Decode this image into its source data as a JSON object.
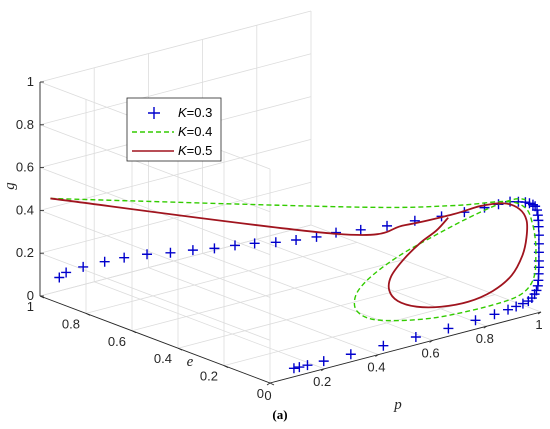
{
  "caption": "(a)",
  "chart_data": {
    "type": "line3d",
    "title": "",
    "xlabel": "p",
    "ylabel": "e",
    "zlabel": "g",
    "xlim": [
      0,
      1
    ],
    "ylim": [
      0,
      1
    ],
    "zlim": [
      0,
      1
    ],
    "x_ticks": [
      "0",
      "0.2",
      "0.4",
      "0.6",
      "0.8",
      "1"
    ],
    "y_ticks": [
      "0",
      "0.2",
      "0.4",
      "0.6",
      "0.8",
      "1"
    ],
    "z_ticks": [
      "0",
      "0.2",
      "0.4",
      "0.6",
      "0.8",
      "1"
    ],
    "grid": true,
    "legend_position": "upper-left",
    "series": [
      {
        "name": "K=0.3",
        "legend_italic": "K",
        "legend_rest": "=0.3",
        "style": "plus-markers",
        "color": "#0000cc",
        "points": [
          [
            0.05,
            0.975,
            0.08
          ],
          [
            0.02,
            0.91,
            0.14
          ],
          [
            0.015,
            0.83,
            0.2
          ],
          [
            0.018,
            0.74,
            0.26
          ],
          [
            0.022,
            0.66,
            0.31
          ],
          [
            0.03,
            0.57,
            0.36
          ],
          [
            0.04,
            0.48,
            0.4
          ],
          [
            0.055,
            0.4,
            0.44
          ],
          [
            0.075,
            0.33,
            0.47
          ],
          [
            0.1,
            0.27,
            0.5
          ],
          [
            0.13,
            0.22,
            0.52
          ],
          [
            0.17,
            0.175,
            0.53
          ],
          [
            0.215,
            0.14,
            0.54
          ],
          [
            0.265,
            0.11,
            0.55
          ],
          [
            0.32,
            0.09,
            0.56
          ],
          [
            0.39,
            0.065,
            0.56
          ],
          [
            0.47,
            0.045,
            0.56
          ],
          [
            0.56,
            0.03,
            0.56
          ],
          [
            0.65,
            0.02,
            0.555
          ],
          [
            0.73,
            0.015,
            0.55
          ],
          [
            0.8,
            0.01,
            0.55
          ],
          [
            0.85,
            0.008,
            0.55
          ],
          [
            0.89,
            0.005,
            0.55
          ],
          [
            0.92,
            0.004,
            0.54
          ],
          [
            0.945,
            0.003,
            0.53
          ],
          [
            0.96,
            0.003,
            0.52
          ],
          [
            0.972,
            0.002,
            0.51
          ],
          [
            0.98,
            0.002,
            0.5
          ],
          [
            0.987,
            0.002,
            0.48
          ],
          [
            0.99,
            0.002,
            0.455
          ],
          [
            0.992,
            0.002,
            0.43
          ],
          [
            0.993,
            0.002,
            0.4
          ],
          [
            0.994,
            0.002,
            0.36
          ],
          [
            0.994,
            0.002,
            0.32
          ],
          [
            0.994,
            0.002,
            0.28
          ],
          [
            0.994,
            0.002,
            0.24
          ],
          [
            0.994,
            0.002,
            0.21
          ],
          [
            0.993,
            0.002,
            0.18
          ],
          [
            0.992,
            0.002,
            0.15
          ],
          [
            0.99,
            0.002,
            0.125
          ],
          [
            0.985,
            0.002,
            0.105
          ],
          [
            0.978,
            0.002,
            0.09
          ],
          [
            0.968,
            0.002,
            0.075
          ],
          [
            0.955,
            0.002,
            0.065
          ],
          [
            0.935,
            0.002,
            0.06
          ],
          [
            0.91,
            0.002,
            0.055
          ],
          [
            0.88,
            0.002,
            0.05
          ],
          [
            0.83,
            0.002,
            0.045
          ],
          [
            0.76,
            0.002,
            0.04
          ],
          [
            0.66,
            0.002,
            0.035
          ],
          [
            0.54,
            0.002,
            0.035
          ],
          [
            0.42,
            0.002,
            0.034
          ],
          [
            0.3,
            0.002,
            0.034
          ],
          [
            0.2,
            0.002,
            0.035
          ],
          [
            0.14,
            0.002,
            0.036
          ],
          [
            0.11,
            0.002,
            0.037
          ],
          [
            0.09,
            0.002,
            0.038
          ]
        ]
      },
      {
        "name": "K=0.4",
        "legend_italic": "K",
        "legend_rest": "=0.4",
        "style": "dashed-line",
        "color": "#33cc00",
        "points": [
          [
            0.03,
            0.99,
            0.45
          ],
          [
            0.45,
            0.18,
            0.6
          ],
          [
            0.7,
            0.04,
            0.58
          ],
          [
            0.88,
            0.015,
            0.55
          ],
          [
            0.95,
            0.01,
            0.5
          ],
          [
            0.975,
            0.008,
            0.42
          ],
          [
            0.985,
            0.006,
            0.33
          ],
          [
            0.985,
            0.005,
            0.25
          ],
          [
            0.98,
            0.004,
            0.18
          ],
          [
            0.96,
            0.004,
            0.13
          ],
          [
            0.92,
            0.004,
            0.1
          ],
          [
            0.85,
            0.004,
            0.09
          ],
          [
            0.74,
            0.004,
            0.09
          ],
          [
            0.61,
            0.005,
            0.1
          ],
          [
            0.48,
            0.006,
            0.13
          ],
          [
            0.38,
            0.007,
            0.17
          ],
          [
            0.33,
            0.008,
            0.22
          ],
          [
            0.32,
            0.01,
            0.27
          ],
          [
            0.34,
            0.013,
            0.32
          ],
          [
            0.4,
            0.018,
            0.37
          ],
          [
            0.5,
            0.025,
            0.42
          ],
          [
            0.62,
            0.032,
            0.46
          ],
          [
            0.75,
            0.036,
            0.5
          ],
          [
            0.86,
            0.034,
            0.53
          ],
          [
            0.93,
            0.028,
            0.54
          ],
          [
            0.96,
            0.02,
            0.53
          ]
        ]
      },
      {
        "name": "K=0.5",
        "legend_italic": "K",
        "legend_rest": "=0.5",
        "style": "solid-line",
        "color": "#a0141e",
        "points": [
          [
            0.03,
            0.99,
            0.45
          ],
          [
            0.45,
            0.24,
            0.45
          ],
          [
            0.6,
            0.12,
            0.49
          ],
          [
            0.72,
            0.05,
            0.53
          ],
          [
            0.8,
            0.028,
            0.55
          ],
          [
            0.88,
            0.018,
            0.54
          ],
          [
            0.93,
            0.012,
            0.5
          ],
          [
            0.955,
            0.01,
            0.44
          ],
          [
            0.955,
            0.01,
            0.36
          ],
          [
            0.94,
            0.01,
            0.28
          ],
          [
            0.9,
            0.01,
            0.2
          ],
          [
            0.83,
            0.01,
            0.15
          ],
          [
            0.74,
            0.01,
            0.13
          ],
          [
            0.64,
            0.01,
            0.14
          ],
          [
            0.55,
            0.01,
            0.17
          ],
          [
            0.48,
            0.01,
            0.22
          ],
          [
            0.45,
            0.012,
            0.28
          ],
          [
            0.46,
            0.015,
            0.34
          ],
          [
            0.51,
            0.02,
            0.4
          ],
          [
            0.58,
            0.03,
            0.45
          ],
          [
            0.65,
            0.042,
            0.48
          ],
          [
            0.7,
            0.05,
            0.52
          ]
        ]
      }
    ]
  }
}
